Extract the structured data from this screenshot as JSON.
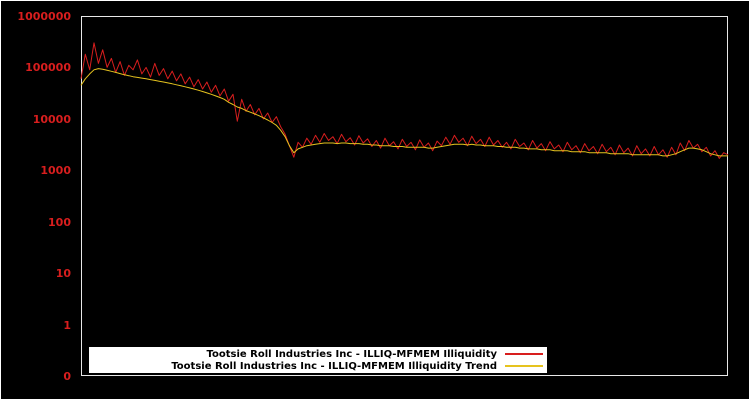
{
  "page": {
    "background_color": "#000000",
    "frame_color": "#e8e8e8"
  },
  "chart_data": {
    "type": "line",
    "title": "",
    "xlabel": "",
    "ylabel": "",
    "grid": false,
    "y_axis": {
      "scale": "log",
      "tick_labels": [
        "1000000",
        "100000",
        "10000",
        "1000",
        "100",
        "10",
        "1",
        "0"
      ],
      "label_color": "#d81e1e",
      "range_top": 1000000,
      "range_bottom": 1
    },
    "legend": {
      "position": "bottom-center",
      "background": "#ffffff",
      "text_color": "#000000"
    },
    "series": [
      {
        "id": "illiquidity",
        "name": "Tootsie Roll Industries Inc - ILLIQ-MFMEM Illiquidity",
        "color": "#d81e1e",
        "values": [
          60000,
          180000,
          90000,
          300000,
          120000,
          220000,
          100000,
          150000,
          80000,
          130000,
          70000,
          110000,
          90000,
          140000,
          75000,
          100000,
          65000,
          120000,
          70000,
          95000,
          60000,
          85000,
          55000,
          75000,
          48000,
          65000,
          42000,
          58000,
          38000,
          52000,
          33000,
          45000,
          28000,
          38000,
          22000,
          30000,
          9000,
          24000,
          14000,
          19000,
          12000,
          16000,
          10000,
          13000,
          8500,
          11000,
          7000,
          5000,
          3000,
          1800,
          3500,
          2800,
          4200,
          3200,
          4800,
          3500,
          5200,
          3800,
          4500,
          3300,
          5000,
          3600,
          4300,
          3100,
          4700,
          3400,
          4100,
          2900,
          3800,
          2700,
          4200,
          3000,
          3600,
          2600,
          4000,
          2900,
          3500,
          2500,
          3900,
          2800,
          3400,
          2400,
          3700,
          3000,
          4400,
          3200,
          4800,
          3500,
          4200,
          3000,
          4600,
          3300,
          4000,
          2900,
          4400,
          3100,
          3800,
          2800,
          3500,
          2600,
          4000,
          2900,
          3400,
          2500,
          3800,
          2700,
          3300,
          2400,
          3600,
          2600,
          3100,
          2300,
          3500,
          2500,
          3000,
          2200,
          3300,
          2400,
          2900,
          2100,
          3200,
          2300,
          2800,
          2000,
          3100,
          2200,
          2700,
          1900,
          3000,
          2100,
          2600,
          1900,
          2900,
          2000,
          2500,
          1800,
          2800,
          2000,
          3400,
          2400,
          3800,
          2700,
          3200,
          2300,
          2800,
          1900,
          2400,
          1700,
          2200,
          2000
        ]
      },
      {
        "id": "illiquidity-trend",
        "name": "Tootsie Roll Industries Inc - ILLIQ-MFMEM Illiquidity Trend",
        "color": "#e6c31e",
        "values": [
          45000,
          60000,
          75000,
          90000,
          95000,
          92000,
          88000,
          84000,
          80000,
          76000,
          72000,
          69000,
          66000,
          64000,
          62000,
          60000,
          58000,
          56000,
          54000,
          52000,
          50000,
          48000,
          46000,
          44000,
          42000,
          40000,
          38000,
          36000,
          34000,
          32000,
          30000,
          28000,
          26000,
          24000,
          21000,
          19000,
          17000,
          16000,
          14500,
          13500,
          12500,
          11500,
          10500,
          9500,
          8500,
          7500,
          6000,
          4500,
          3000,
          2200,
          2600,
          2800,
          3000,
          3100,
          3200,
          3300,
          3400,
          3400,
          3400,
          3300,
          3400,
          3400,
          3300,
          3300,
          3300,
          3200,
          3200,
          3100,
          3100,
          3000,
          3000,
          3000,
          2900,
          2900,
          2900,
          2800,
          2800,
          2800,
          2800,
          2800,
          2700,
          2700,
          2800,
          2900,
          3000,
          3100,
          3200,
          3200,
          3200,
          3100,
          3200,
          3100,
          3100,
          3000,
          3000,
          3000,
          2900,
          2900,
          2800,
          2800,
          2800,
          2700,
          2700,
          2600,
          2600,
          2600,
          2500,
          2500,
          2500,
          2400,
          2400,
          2400,
          2400,
          2300,
          2300,
          2300,
          2300,
          2200,
          2200,
          2200,
          2200,
          2200,
          2100,
          2100,
          2100,
          2100,
          2100,
          2000,
          2000,
          2000,
          2000,
          2000,
          2000,
          2000,
          1900,
          1900,
          2000,
          2100,
          2300,
          2500,
          2700,
          2700,
          2600,
          2500,
          2300,
          2100,
          2000,
          1900,
          1900,
          1900
        ]
      }
    ]
  }
}
